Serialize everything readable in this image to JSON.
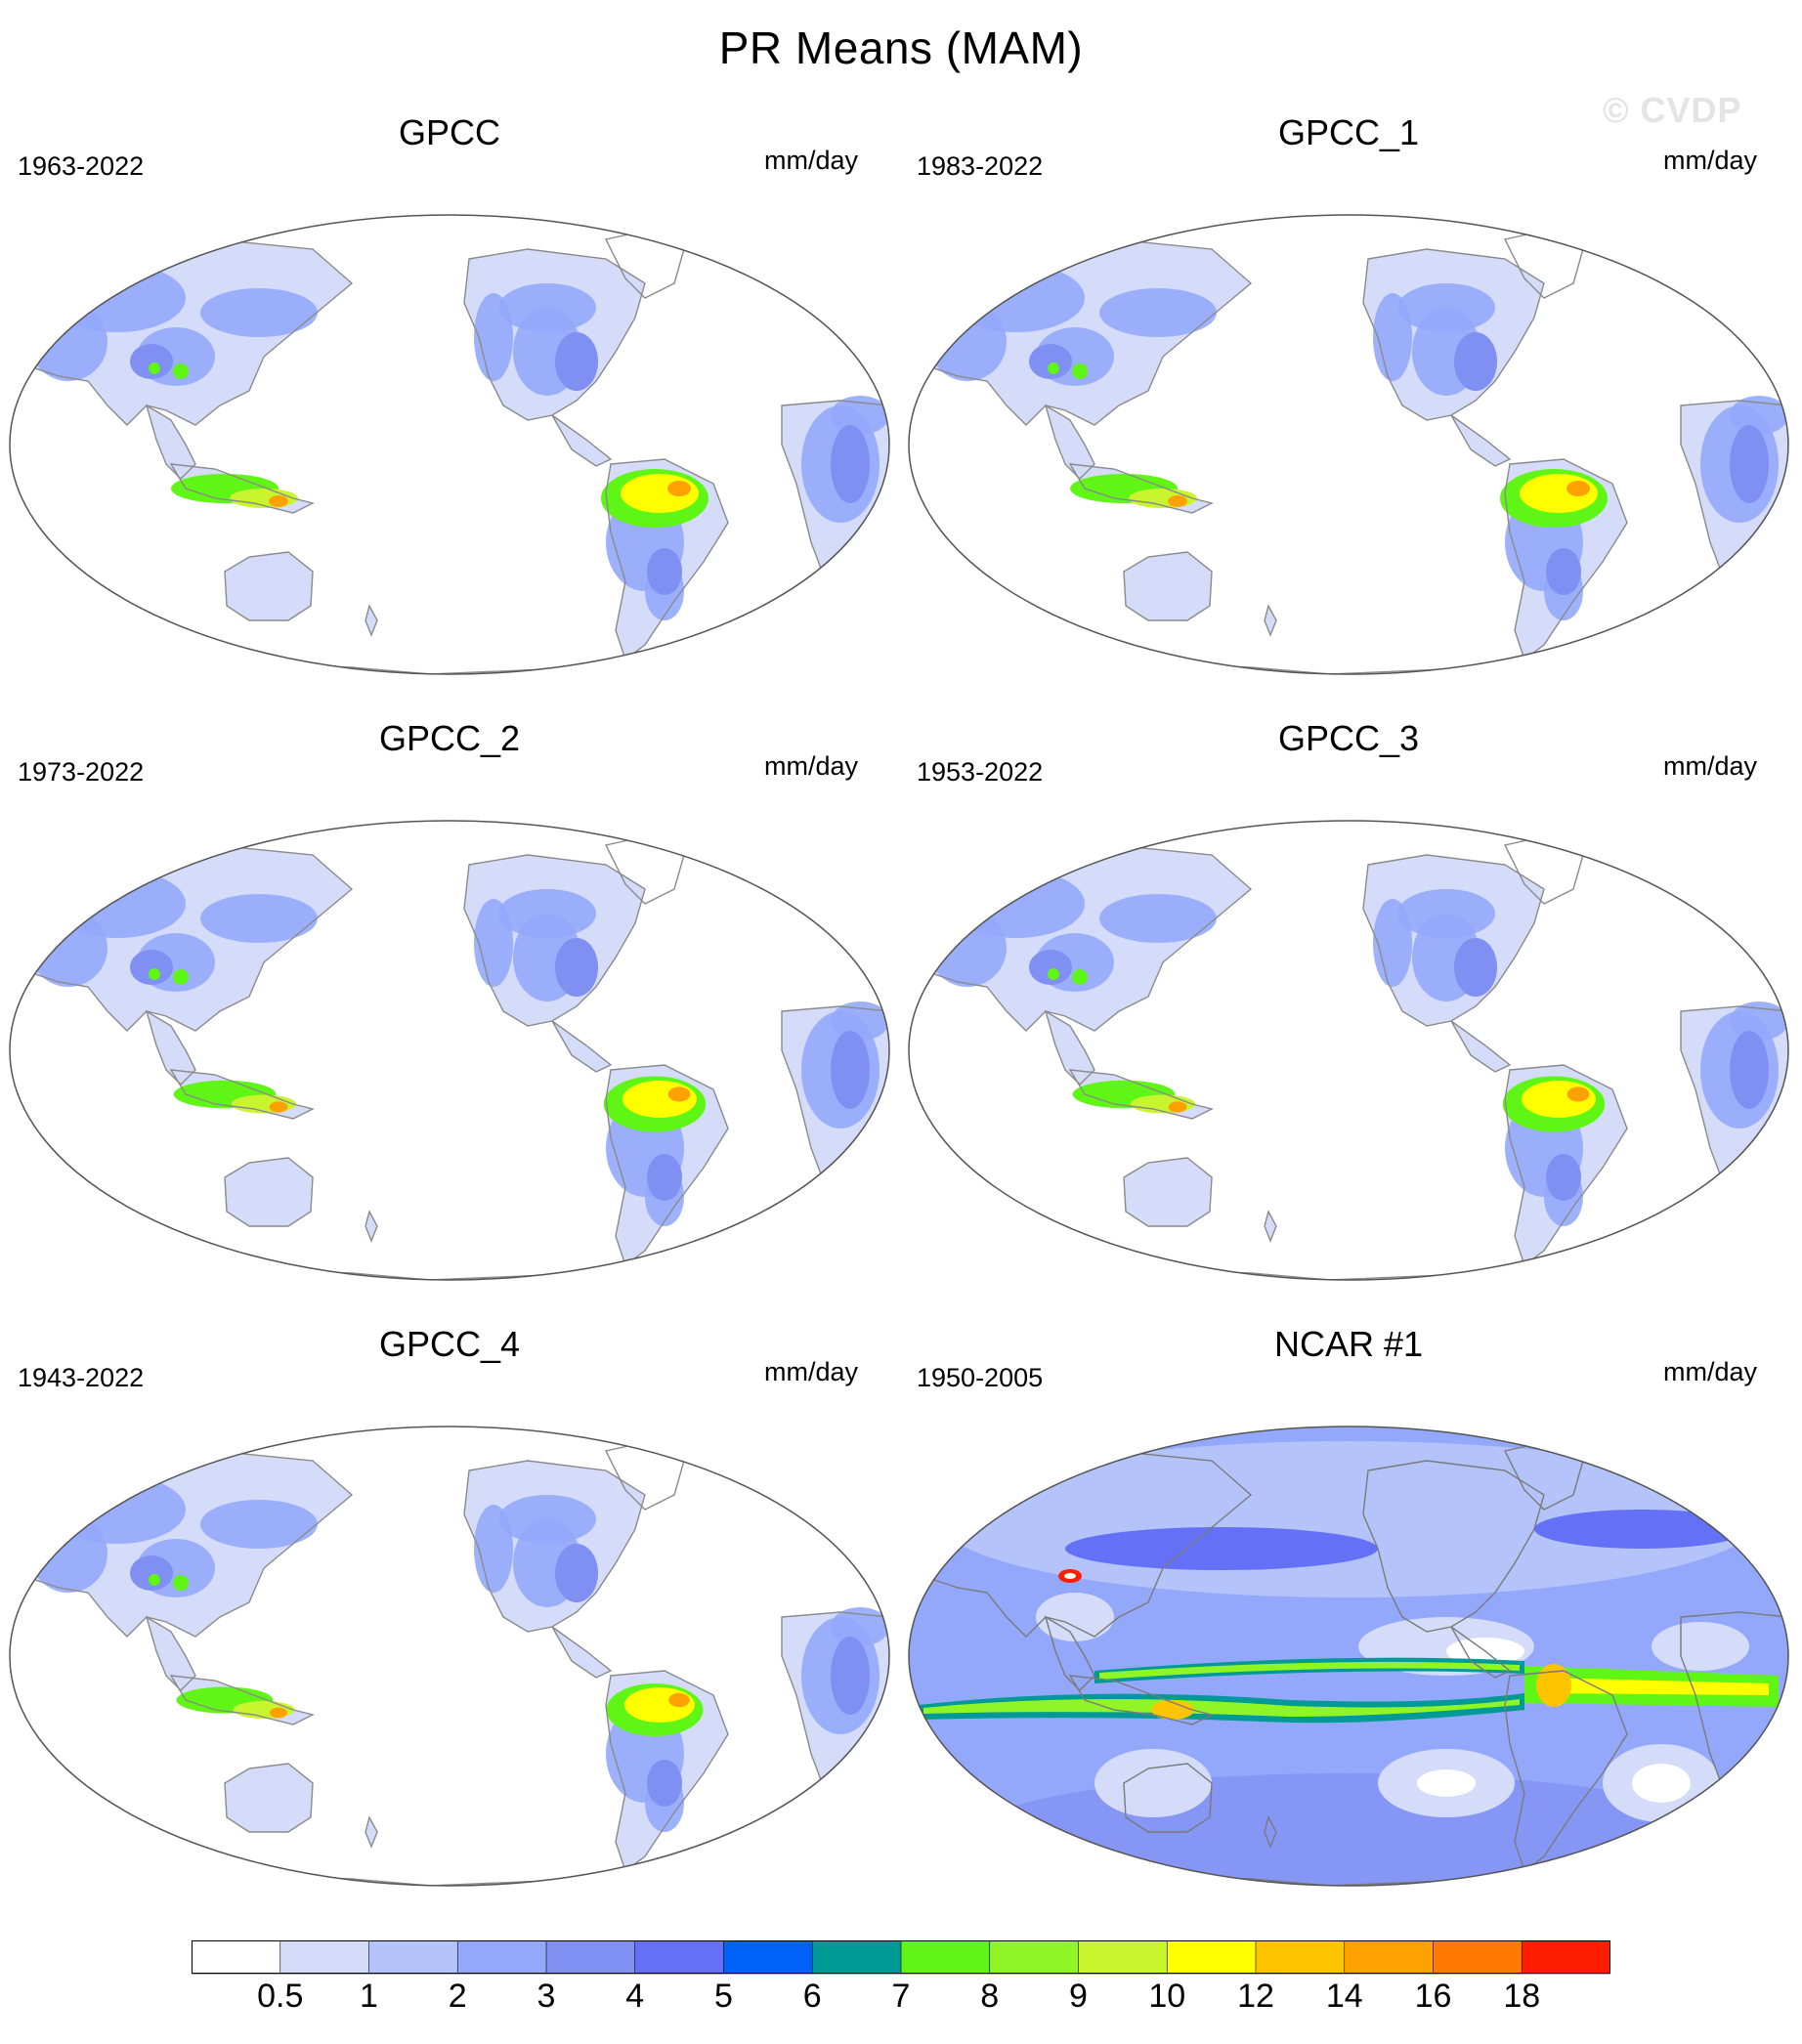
{
  "title": "PR Means (MAM)",
  "watermark": "© CVDP",
  "panels": [
    {
      "name": "GPCC",
      "years": "1963-2022",
      "units": "mm/day",
      "kind": "gpcc",
      "intensity": 1.0
    },
    {
      "name": "GPCC_1",
      "years": "1983-2022",
      "units": "mm/day",
      "kind": "gpcc",
      "intensity": 1.0
    },
    {
      "name": "GPCC_2",
      "years": "1973-2022",
      "units": "mm/day",
      "kind": "gpcc",
      "intensity": 0.95
    },
    {
      "name": "GPCC_3",
      "years": "1953-2022",
      "units": "mm/day",
      "kind": "gpcc",
      "intensity": 0.95
    },
    {
      "name": "GPCC_4",
      "years": "1943-2022",
      "units": "mm/day",
      "kind": "gpcc",
      "intensity": 0.9
    },
    {
      "name": "NCAR #1",
      "years": "1950-2005",
      "units": "mm/day",
      "kind": "model",
      "intensity": 1.0
    }
  ],
  "colorbar": {
    "labels": [
      "0.5",
      "1",
      "2",
      "3",
      "4",
      "5",
      "6",
      "7",
      "8",
      "9",
      "10",
      "12",
      "14",
      "16",
      "18"
    ],
    "colors": [
      "#ffffff",
      "#d4dcfa",
      "#b5c3fb",
      "#93a8fb",
      "#7f8ff2",
      "#6470f5",
      "#0062f8",
      "#009a96",
      "#5ff515",
      "#8ff525",
      "#c8f52e",
      "#ffff00",
      "#ffc400",
      "#ffa100",
      "#ff7a00",
      "#ff1d00"
    ]
  }
}
